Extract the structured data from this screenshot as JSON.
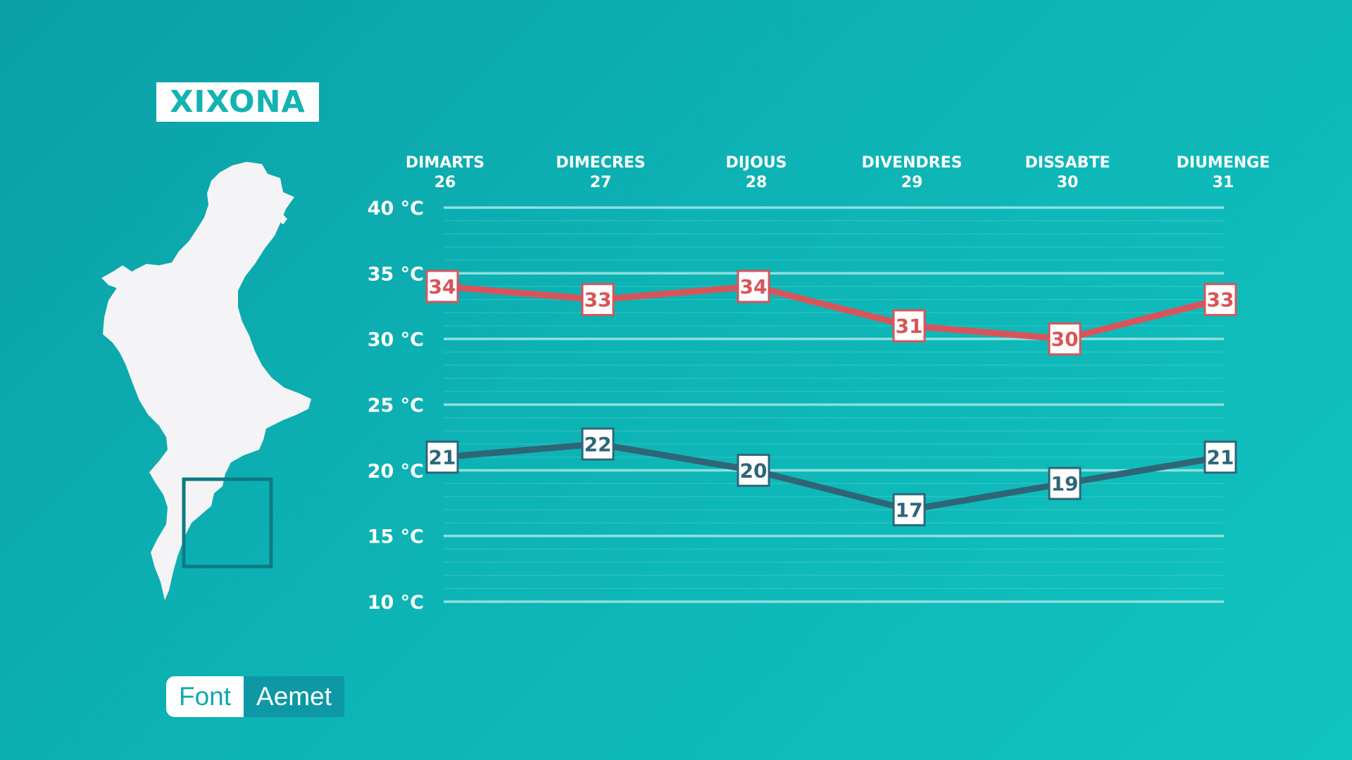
{
  "location": "XIXONA",
  "source": {
    "label": "Font",
    "value": "Aemet"
  },
  "colors": {
    "high": "#d9545a",
    "low": "#2e6678",
    "grid": "#8ee0de",
    "background": "#0db3b5"
  },
  "chart_data": {
    "type": "line",
    "categories": [
      {
        "day": "DIMARTS",
        "date": "26"
      },
      {
        "day": "DIMECRES",
        "date": "27"
      },
      {
        "day": "DIJOUS",
        "date": "28"
      },
      {
        "day": "DIVENDRES",
        "date": "29"
      },
      {
        "day": "DISSABTE",
        "date": "30"
      },
      {
        "day": "DIUMENGE",
        "date": "31"
      }
    ],
    "series": [
      {
        "key": "high",
        "values": [
          34,
          33,
          34,
          31,
          30,
          33
        ],
        "labels": [
          "34",
          "33",
          "34",
          "31",
          "30",
          "33"
        ]
      },
      {
        "key": "low",
        "values": [
          21,
          22,
          20,
          17,
          19,
          21
        ],
        "labels": [
          "21",
          "22",
          "20",
          "17",
          "19",
          "21"
        ]
      }
    ],
    "yticks": [
      {
        "value": 40,
        "label": "40 °C"
      },
      {
        "value": 35,
        "label": "35 °C"
      },
      {
        "value": 30,
        "label": "30 °C"
      },
      {
        "value": 25,
        "label": "25 °C"
      },
      {
        "value": 20,
        "label": "20 °C"
      },
      {
        "value": 15,
        "label": "15 °C"
      },
      {
        "value": 10,
        "label": "10 °C"
      }
    ],
    "ylim": [
      10,
      40
    ],
    "grid": true
  }
}
